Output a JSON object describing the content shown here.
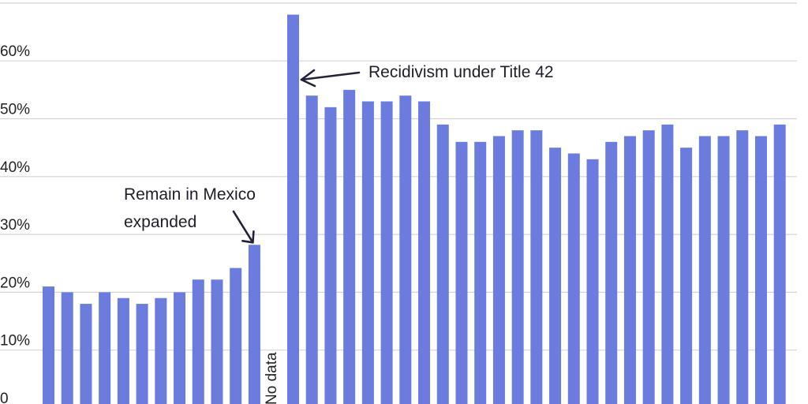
{
  "chart_data": {
    "type": "bar",
    "title": "",
    "xlabel": "",
    "ylabel": "",
    "ylim": [
      0,
      68
    ],
    "y_ticks": [
      {
        "value": 0,
        "label": "0"
      },
      {
        "value": 10,
        "label": "10%"
      },
      {
        "value": 20,
        "label": "20%"
      },
      {
        "value": 30,
        "label": "30%"
      },
      {
        "value": 40,
        "label": "40%"
      },
      {
        "value": 50,
        "label": "50%"
      },
      {
        "value": 60,
        "label": "60%"
      }
    ],
    "grid": true,
    "bar_color": "#6b7bde",
    "values_before_gap": [
      21,
      20,
      18,
      20,
      19,
      18,
      19,
      20,
      22.2,
      22.2,
      24.2,
      28.2
    ],
    "gap_label": "No data",
    "values_after_gap": [
      68,
      54,
      52,
      55,
      53,
      53,
      54,
      53,
      49,
      46,
      46,
      47,
      48,
      48,
      45,
      44,
      43,
      46,
      47,
      48,
      49,
      45,
      47,
      47,
      48,
      47,
      49
    ],
    "annotations": [
      {
        "id": "remain",
        "lines": [
          "Remain in Mexico",
          "expanded"
        ]
      },
      {
        "id": "title42",
        "lines": [
          "Recidivism under Title 42"
        ]
      }
    ]
  }
}
